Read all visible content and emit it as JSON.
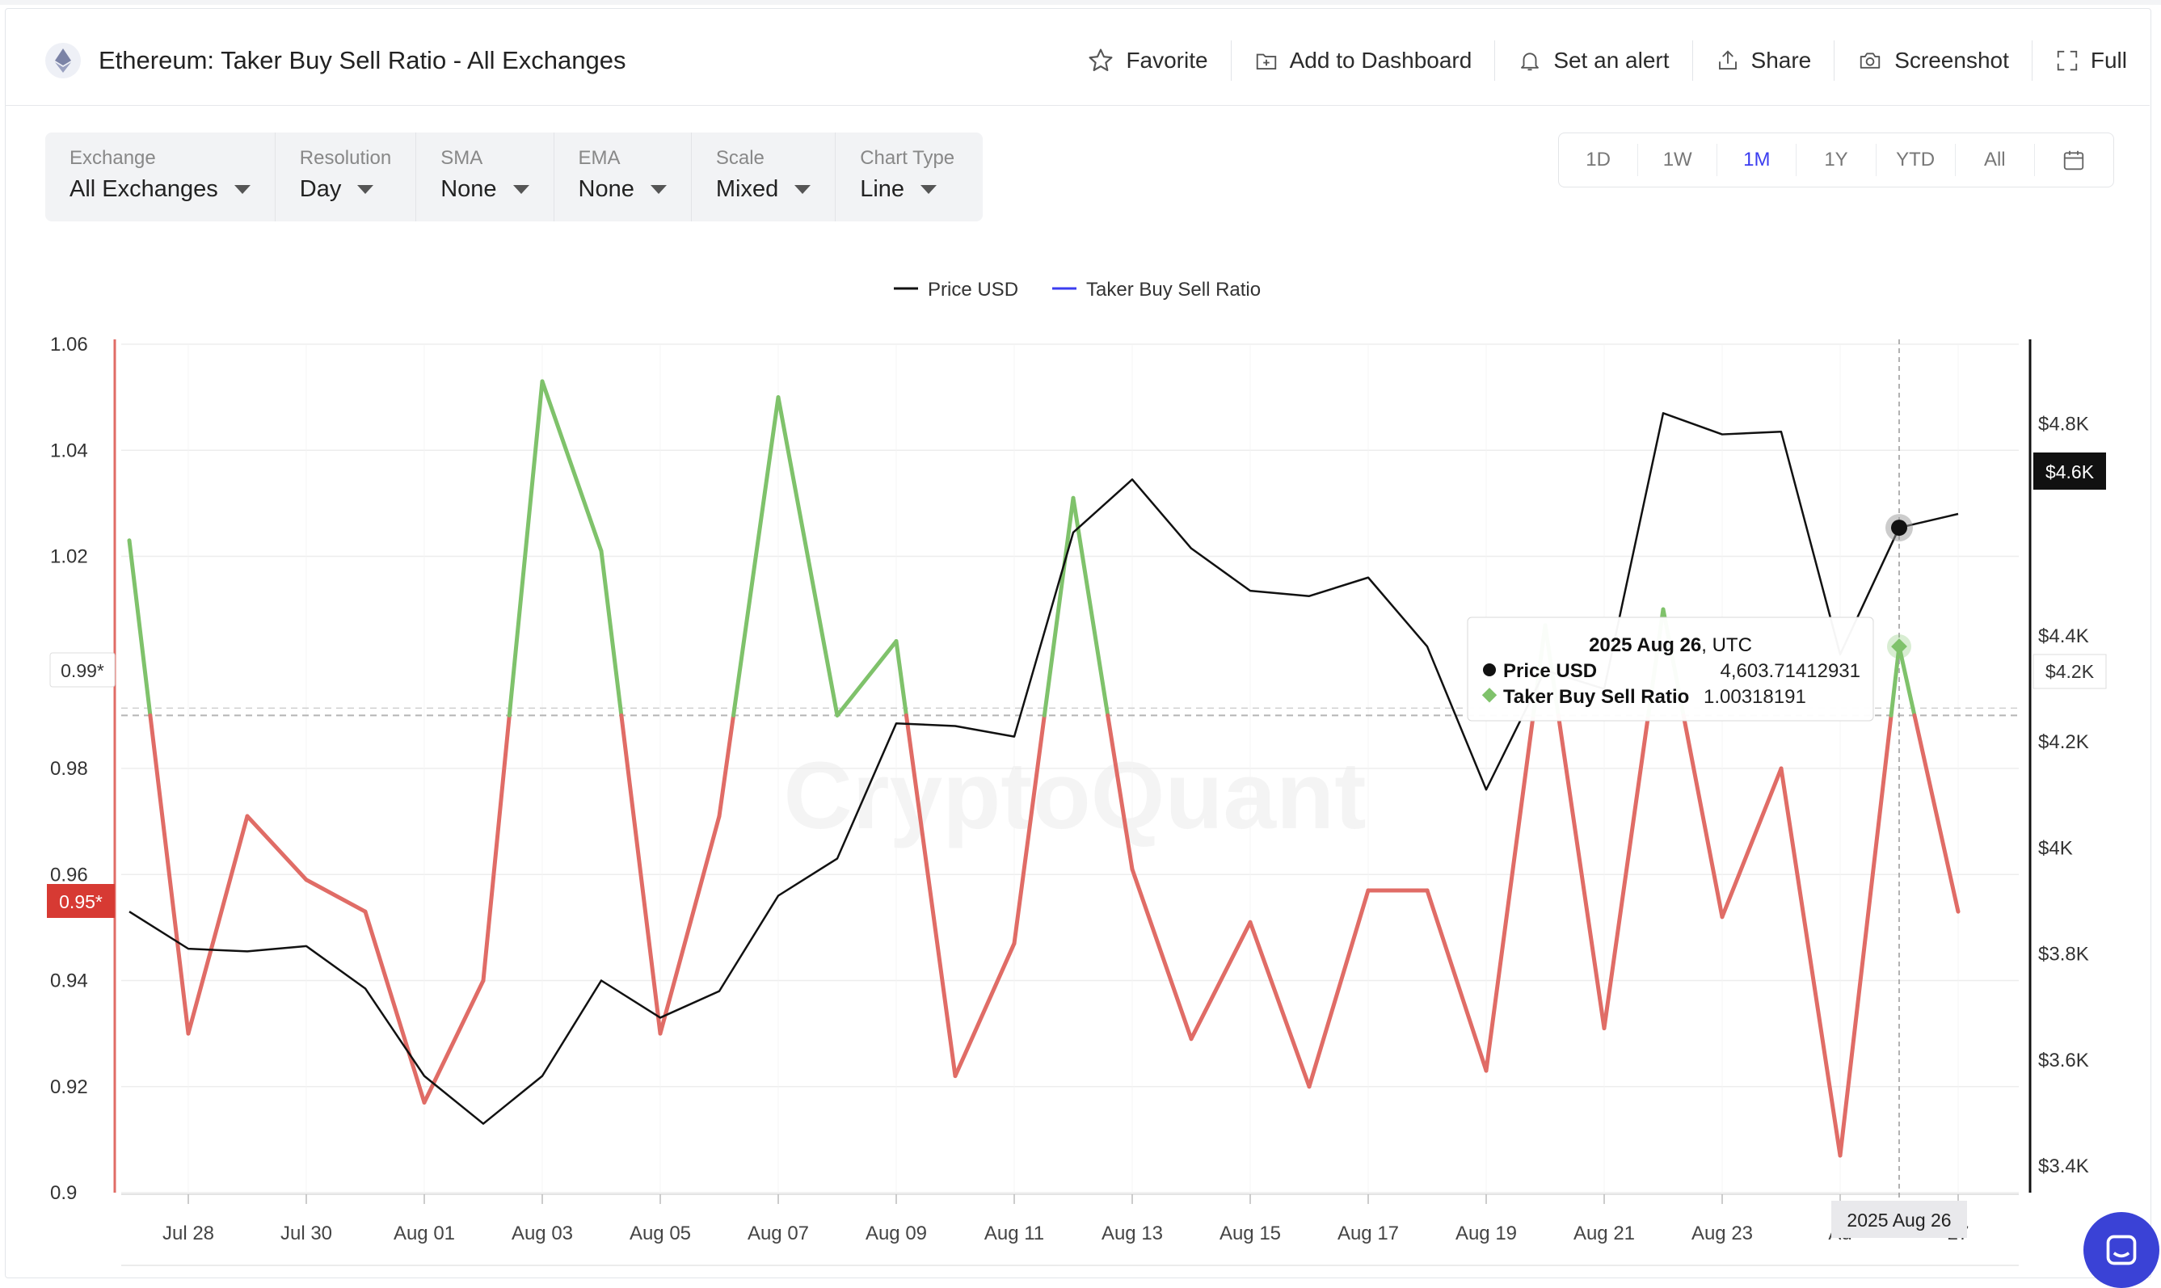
{
  "header": {
    "title": "Ethereum: Taker Buy Sell Ratio - All Exchanges",
    "actions": {
      "favorite": "Favorite",
      "add_dashboard": "Add to Dashboard",
      "alert": "Set an alert",
      "share": "Share",
      "screenshot": "Screenshot",
      "full": "Full"
    }
  },
  "controls": [
    {
      "label": "Exchange",
      "value": "All Exchanges"
    },
    {
      "label": "Resolution",
      "value": "Day"
    },
    {
      "label": "SMA",
      "value": "None"
    },
    {
      "label": "EMA",
      "value": "None"
    },
    {
      "label": "Scale",
      "value": "Mixed"
    },
    {
      "label": "Chart Type",
      "value": "Line"
    }
  ],
  "ranges": {
    "items": [
      "1D",
      "1W",
      "1M",
      "1Y",
      "YTD",
      "All"
    ],
    "active": "1M"
  },
  "watermark": "CryptoQuant",
  "colors": {
    "price": "#111111",
    "ratio_above": "#7fc26b",
    "ratio_below": "#e06c66",
    "ratio_legend": "#3b3df0",
    "threshold_badge": "#d73a33",
    "price_badge": "#111111",
    "accent": "#3b3df0"
  },
  "chart_data": {
    "type": "line",
    "legend": [
      {
        "name": "Price USD"
      },
      {
        "name": "Taker Buy Sell Ratio"
      }
    ],
    "legend_position": "top-center",
    "x": [
      "Jul 27",
      "Jul 28",
      "Jul 29",
      "Jul 30",
      "Jul 31",
      "Aug 01",
      "Aug 02",
      "Aug 03",
      "Aug 04",
      "Aug 05",
      "Aug 06",
      "Aug 07",
      "Aug 08",
      "Aug 09",
      "Aug 10",
      "Aug 11",
      "Aug 12",
      "Aug 13",
      "Aug 14",
      "Aug 15",
      "Aug 16",
      "Aug 17",
      "Aug 18",
      "Aug 19",
      "Aug 20",
      "Aug 21",
      "Aug 22",
      "Aug 23",
      "Aug 24",
      "Aug 25",
      "Aug 26",
      "Aug 27"
    ],
    "x_tick_labels": [
      "Jul 28",
      "Jul 30",
      "Aug 01",
      "Aug 03",
      "Aug 05",
      "Aug 07",
      "Aug 09",
      "Aug 11",
      "Aug 13",
      "Aug 15",
      "Aug 17",
      "Aug 19",
      "Aug 21",
      "Aug 23",
      "Au",
      "27"
    ],
    "series": [
      {
        "name": "Taker Buy Sell Ratio",
        "axis": "left",
        "values": [
          1.023,
          0.93,
          0.971,
          0.959,
          0.953,
          0.917,
          0.94,
          1.053,
          1.021,
          0.93,
          0.971,
          1.05,
          0.99,
          1.004,
          0.922,
          0.947,
          1.031,
          0.961,
          0.929,
          0.951,
          0.92,
          0.957,
          0.957,
          0.923,
          1.007,
          0.931,
          1.01,
          0.952,
          0.98,
          0.907,
          1.003,
          0.953
        ]
      },
      {
        "name": "Price USD",
        "axis": "right",
        "values": [
          3880,
          3810,
          3805,
          3815,
          3735,
          3570,
          3480,
          3570,
          3750,
          3680,
          3730,
          3910,
          3980,
          4235,
          4230,
          4210,
          4595,
          4695,
          4565,
          4485,
          4475,
          4510,
          4380,
          4110,
          4335,
          4300,
          4820,
          4780,
          4785,
          4365,
          4604,
          4630
        ]
      }
    ],
    "y_left": {
      "ticks": [
        "0.9",
        "0.92",
        "0.94",
        "0.96",
        "0.98",
        "1.02",
        "1.04",
        "1.06"
      ],
      "range": [
        0.9,
        1.06
      ]
    },
    "y_right": {
      "ticks": [
        "$3.4K",
        "$3.6K",
        "$3.8K",
        "$4K",
        "$4.2K",
        "$4.4K",
        "$4.8K"
      ],
      "range": [
        3350,
        4950
      ]
    },
    "threshold": {
      "value": 0.99,
      "label": "0.99*"
    },
    "badges": {
      "left": "0.95*",
      "right_price": "$4.6K",
      "right_level": "$4.2K"
    },
    "tooltip": {
      "date": "2025 Aug 26",
      "tz": ", UTC",
      "price_label": "Price USD",
      "price_value": "4,603.71412931",
      "ratio_label": "Taker Buy Sell Ratio",
      "ratio_value": "1.00318191"
    },
    "crosshair_label": "2025 Aug 26",
    "hover_index": 30,
    "grid": true
  }
}
